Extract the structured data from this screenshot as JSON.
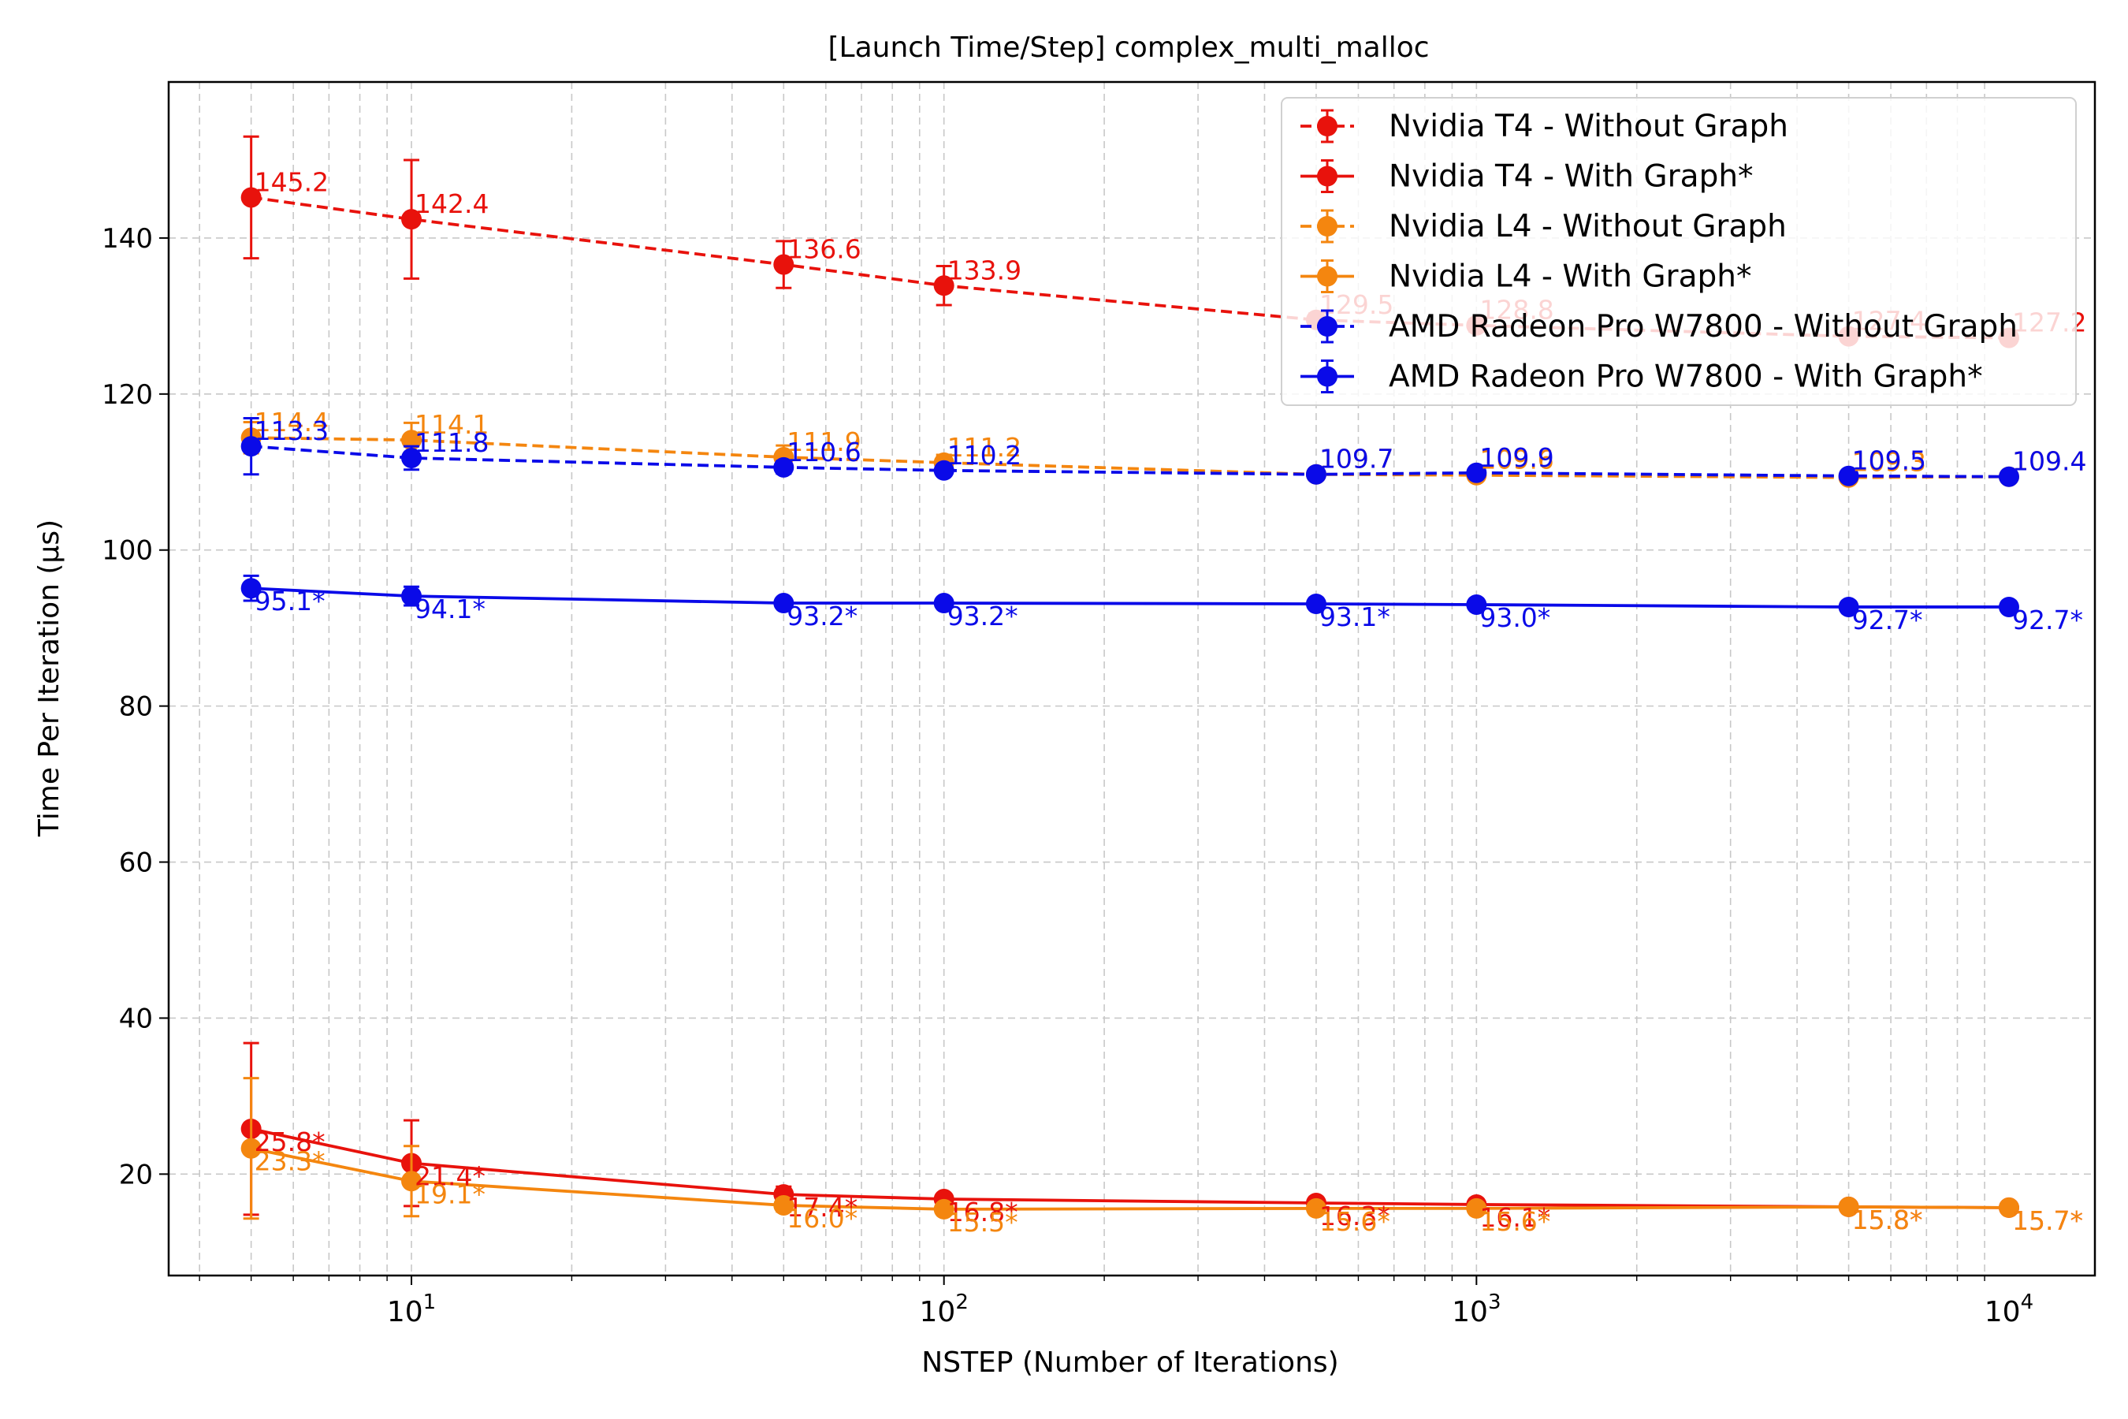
{
  "chart_data": {
    "type": "line",
    "title": "[Launch Time/Step] complex_multi_malloc",
    "xlabel": "NSTEP (Number of Iterations)",
    "ylabel": "Time Per Iteration (μs)",
    "xscale": "log",
    "xlim": [
      3.5,
      14500
    ],
    "ylim": [
      7,
      160
    ],
    "x_ticks": [
      {
        "value": 10,
        "base": "10",
        "exp": "1"
      },
      {
        "value": 100,
        "base": "10",
        "exp": "2"
      },
      {
        "value": 1000,
        "base": "10",
        "exp": "3"
      },
      {
        "value": 10000,
        "base": "10",
        "exp": "4"
      }
    ],
    "y_ticks": [
      20,
      40,
      60,
      80,
      100,
      120,
      140
    ],
    "grid": true,
    "legend_position": "upper-right",
    "x": [
      5,
      10,
      50,
      100,
      500,
      1000,
      5000,
      10000
    ],
    "series": [
      {
        "name": "Nvidia T4 - Without Graph",
        "color": "#e8120c",
        "dashed": true,
        "values": [
          145.2,
          142.4,
          136.6,
          133.9,
          129.5,
          128.8,
          127.4,
          127.2
        ],
        "errors": [
          7.8,
          7.6,
          3.0,
          2.5,
          0.8,
          0.8,
          0.6,
          0.6
        ],
        "labels": [
          "145.2",
          "142.4",
          "136.6",
          "133.9",
          "129.5",
          "128.8",
          "127.4",
          "127.2"
        ]
      },
      {
        "name": "Nvidia T4 - With Graph*",
        "color": "#e8120c",
        "dashed": false,
        "values": [
          25.8,
          21.4,
          17.4,
          16.8,
          16.3,
          16.1,
          15.8,
          15.7
        ],
        "errors": [
          11.0,
          5.5,
          1.0,
          0.6,
          0.4,
          0.4,
          0.3,
          0.3
        ],
        "labels": [
          "25.8*",
          "21.4*",
          "17.4*",
          "16.8*",
          "16.3*",
          "16.1*",
          "15.8*",
          "15.7*"
        ]
      },
      {
        "name": "Nvidia L4 - Without Graph",
        "color": "#f4860f",
        "dashed": true,
        "values": [
          114.4,
          114.1,
          111.9,
          111.2,
          109.7,
          109.6,
          109.3,
          109.4
        ],
        "errors": [
          2.0,
          2.2,
          1.5,
          1.0,
          0.6,
          0.6,
          0.4,
          0.4
        ],
        "labels": [
          "114.4",
          "114.1",
          "111.9",
          "111.2",
          "109.7",
          "109.6",
          "109.3",
          "109.4"
        ]
      },
      {
        "name": "Nvidia L4 - With Graph*",
        "color": "#f4860f",
        "dashed": false,
        "values": [
          23.3,
          19.1,
          16.0,
          15.5,
          15.6,
          15.6,
          15.8,
          15.7
        ],
        "errors": [
          9.0,
          4.5,
          0.8,
          0.5,
          0.4,
          0.4,
          0.3,
          0.3
        ],
        "labels": [
          "23.3*",
          "19.1*",
          "16.0*",
          "15.5*",
          "15.6*",
          "15.6*",
          "15.8*",
          "15.7*"
        ]
      },
      {
        "name": "AMD Radeon Pro W7800 - Without Graph",
        "color": "#0a0ae8",
        "dashed": true,
        "values": [
          113.3,
          111.8,
          110.6,
          110.2,
          109.7,
          109.9,
          109.5,
          109.4
        ],
        "errors": [
          3.6,
          1.5,
          0.8,
          0.6,
          0.4,
          0.4,
          0.3,
          0.3
        ],
        "labels": [
          "113.3",
          "111.8",
          "110.6",
          "110.2",
          "109.7",
          "109.9",
          "109.5",
          "109.4"
        ]
      },
      {
        "name": "AMD Radeon Pro W7800 - With Graph*",
        "color": "#0a0ae8",
        "dashed": false,
        "values": [
          95.1,
          94.1,
          93.2,
          93.2,
          93.1,
          93.0,
          92.7,
          92.7
        ],
        "errors": [
          1.6,
          1.2,
          0.6,
          0.5,
          0.4,
          0.4,
          0.3,
          0.3
        ],
        "labels": [
          "95.1*",
          "94.1*",
          "93.2*",
          "93.2*",
          "93.1*",
          "93.0*",
          "92.7*",
          "92.7*"
        ]
      }
    ]
  }
}
